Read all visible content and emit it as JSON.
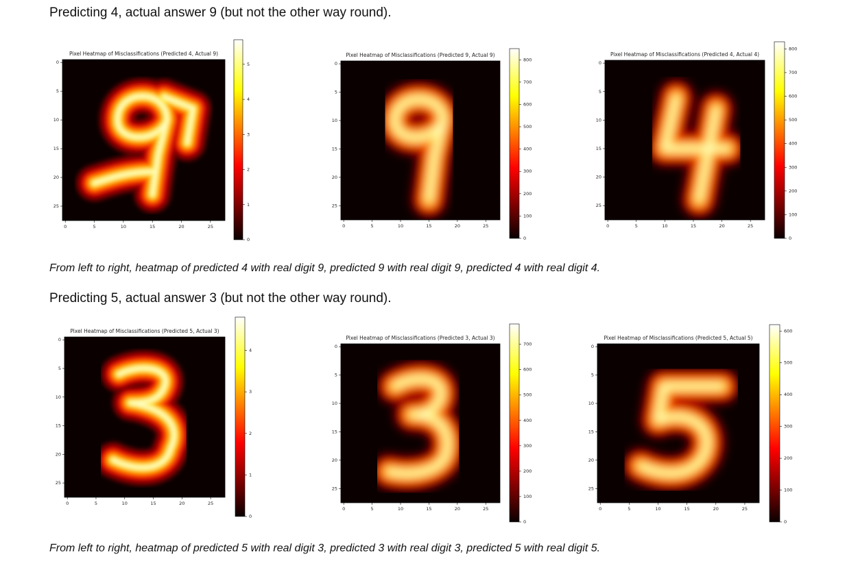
{
  "heading_1": "Predicting 4, actual answer 9 (but not the other way round).",
  "caption_1": "From left to right, heatmap of predicted 4 with real digit 9, predicted 9 with real digit 9, predicted 4 with real digit 4.",
  "heading_2": "Predicting 5, actual answer 3 (but not the other way round).",
  "caption_2": "From left to right, heatmap of predicted 5 with real digit 3, predicted 3 with real digit 3, predicted 5 with real digit 5.",
  "chart_data": [
    {
      "type": "heatmap",
      "title": "Pixel Heatmap of Misclassifications (Predicted 4, Actual 9)",
      "colormap": "hot",
      "xlim": [
        -0.5,
        27.5
      ],
      "ylim": [
        27.5,
        -0.5
      ],
      "xticks": [
        0,
        5,
        10,
        15,
        20,
        25
      ],
      "yticks": [
        0,
        5,
        10,
        15,
        20,
        25
      ],
      "clim": [
        0,
        5.7
      ],
      "cticks": [
        0,
        1,
        2,
        3,
        4,
        5
      ]
    },
    {
      "type": "heatmap",
      "title": "Pixel Heatmap of Misclassifications (Predicted 9, Actual 9)",
      "colormap": "hot",
      "xlim": [
        -0.5,
        27.5
      ],
      "ylim": [
        27.5,
        -0.5
      ],
      "xticks": [
        0,
        5,
        10,
        15,
        20,
        25
      ],
      "yticks": [
        0,
        5,
        10,
        15,
        20,
        25
      ],
      "clim": [
        0,
        850
      ],
      "cticks": [
        0,
        100,
        200,
        300,
        400,
        500,
        600,
        700,
        800
      ]
    },
    {
      "type": "heatmap",
      "title": "Pixel Heatmap of Misclassifications (Predicted 4, Actual 4)",
      "colormap": "hot",
      "xlim": [
        -0.5,
        27.5
      ],
      "ylim": [
        27.5,
        -0.5
      ],
      "xticks": [
        0,
        5,
        10,
        15,
        20,
        25
      ],
      "yticks": [
        0,
        5,
        10,
        15,
        20,
        25
      ],
      "clim": [
        0,
        830
      ],
      "cticks": [
        0,
        100,
        200,
        300,
        400,
        500,
        600,
        700,
        800
      ]
    },
    {
      "type": "heatmap",
      "title": "Pixel Heatmap of Misclassifications (Predicted 5, Actual 3)",
      "colormap": "hot",
      "xlim": [
        -0.5,
        27.5
      ],
      "ylim": [
        27.5,
        -0.5
      ],
      "xticks": [
        0,
        5,
        10,
        15,
        20,
        25
      ],
      "yticks": [
        0,
        5,
        10,
        15,
        20,
        25
      ],
      "clim": [
        0,
        4.8
      ],
      "cticks": [
        0,
        1,
        2,
        3,
        4
      ]
    },
    {
      "type": "heatmap",
      "title": "Pixel Heatmap of Misclassifications (Predicted 3, Actual 3)",
      "colormap": "hot",
      "xlim": [
        -0.5,
        27.5
      ],
      "ylim": [
        27.5,
        -0.5
      ],
      "xticks": [
        0,
        5,
        10,
        15,
        20,
        25
      ],
      "yticks": [
        0,
        5,
        10,
        15,
        20,
        25
      ],
      "clim": [
        0,
        780
      ],
      "cticks": [
        0,
        100,
        200,
        300,
        400,
        500,
        600,
        700
      ]
    },
    {
      "type": "heatmap",
      "title": "Pixel Heatmap of Misclassifications (Predicted 5, Actual 5)",
      "colormap": "hot",
      "xlim": [
        -0.5,
        27.5
      ],
      "ylim": [
        27.5,
        -0.5
      ],
      "xticks": [
        0,
        5,
        10,
        15,
        20,
        25
      ],
      "yticks": [
        0,
        5,
        10,
        15,
        20,
        25
      ],
      "clim": [
        0,
        620
      ],
      "cticks": [
        0,
        100,
        200,
        300,
        400,
        500,
        600
      ]
    }
  ]
}
